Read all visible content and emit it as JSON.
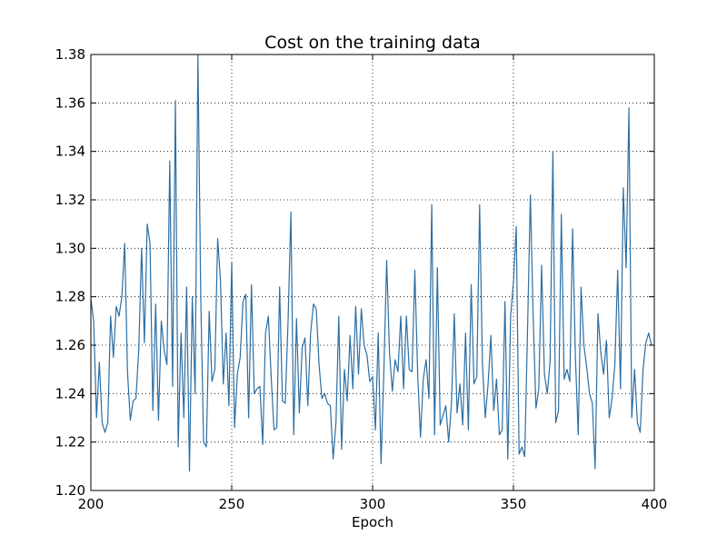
{
  "chart_data": {
    "type": "line",
    "title": "Cost on the training data",
    "xlabel": "Epoch",
    "ylabel": "",
    "xlim": [
      200,
      400
    ],
    "ylim": [
      1.2,
      1.38
    ],
    "xticks": [
      200,
      250,
      300,
      350,
      400
    ],
    "xtick_labels": [
      "200",
      "250",
      "300",
      "350",
      "400"
    ],
    "yticks": [
      1.2,
      1.22,
      1.24,
      1.26,
      1.28,
      1.3,
      1.32,
      1.34,
      1.36,
      1.38
    ],
    "ytick_labels": [
      "1.20",
      "1.22",
      "1.24",
      "1.26",
      "1.28",
      "1.30",
      "1.32",
      "1.34",
      "1.36",
      "1.38"
    ],
    "grid": true,
    "line_color": "#2c6ea3",
    "series": [
      {
        "x_start": 200,
        "x_step": 1,
        "values": [
          1.279,
          1.27,
          1.23,
          1.253,
          1.228,
          1.224,
          1.228,
          1.272,
          1.255,
          1.276,
          1.272,
          1.28,
          1.302,
          1.249,
          1.229,
          1.237,
          1.238,
          1.258,
          1.3,
          1.261,
          1.31,
          1.302,
          1.233,
          1.277,
          1.229,
          1.27,
          1.258,
          1.252,
          1.336,
          1.243,
          1.361,
          1.218,
          1.265,
          1.23,
          1.284,
          1.208,
          1.28,
          1.24,
          1.38,
          1.28,
          1.22,
          1.218,
          1.274,
          1.245,
          1.25,
          1.304,
          1.287,
          1.244,
          1.265,
          1.235,
          1.294,
          1.226,
          1.248,
          1.255,
          1.278,
          1.281,
          1.23,
          1.285,
          1.24,
          1.242,
          1.243,
          1.219,
          1.265,
          1.272,
          1.247,
          1.225,
          1.226,
          1.284,
          1.237,
          1.236,
          1.27,
          1.315,
          1.223,
          1.271,
          1.232,
          1.259,
          1.263,
          1.235,
          1.265,
          1.277,
          1.275,
          1.252,
          1.238,
          1.24,
          1.236,
          1.235,
          1.213,
          1.228,
          1.272,
          1.217,
          1.25,
          1.237,
          1.264,
          1.242,
          1.276,
          1.248,
          1.275,
          1.26,
          1.256,
          1.245,
          1.247,
          1.225,
          1.265,
          1.211,
          1.249,
          1.295,
          1.257,
          1.241,
          1.254,
          1.249,
          1.272,
          1.242,
          1.272,
          1.25,
          1.249,
          1.291,
          1.248,
          1.222,
          1.246,
          1.254,
          1.238,
          1.318,
          1.223,
          1.292,
          1.227,
          1.231,
          1.235,
          1.22,
          1.236,
          1.273,
          1.232,
          1.244,
          1.227,
          1.265,
          1.225,
          1.285,
          1.244,
          1.247,
          1.318,
          1.252,
          1.23,
          1.244,
          1.264,
          1.233,
          1.246,
          1.223,
          1.225,
          1.278,
          1.213,
          1.272,
          1.286,
          1.309,
          1.215,
          1.218,
          1.214,
          1.266,
          1.322,
          1.272,
          1.234,
          1.242,
          1.293,
          1.248,
          1.24,
          1.253,
          1.34,
          1.228,
          1.233,
          1.314,
          1.246,
          1.25,
          1.245,
          1.308,
          1.255,
          1.223,
          1.284,
          1.26,
          1.251,
          1.24,
          1.236,
          1.209,
          1.273,
          1.257,
          1.248,
          1.262,
          1.23,
          1.238,
          1.252,
          1.291,
          1.242,
          1.325,
          1.292,
          1.358,
          1.23,
          1.25,
          1.228,
          1.224,
          1.25,
          1.261,
          1.265,
          1.26
        ]
      }
    ]
  }
}
